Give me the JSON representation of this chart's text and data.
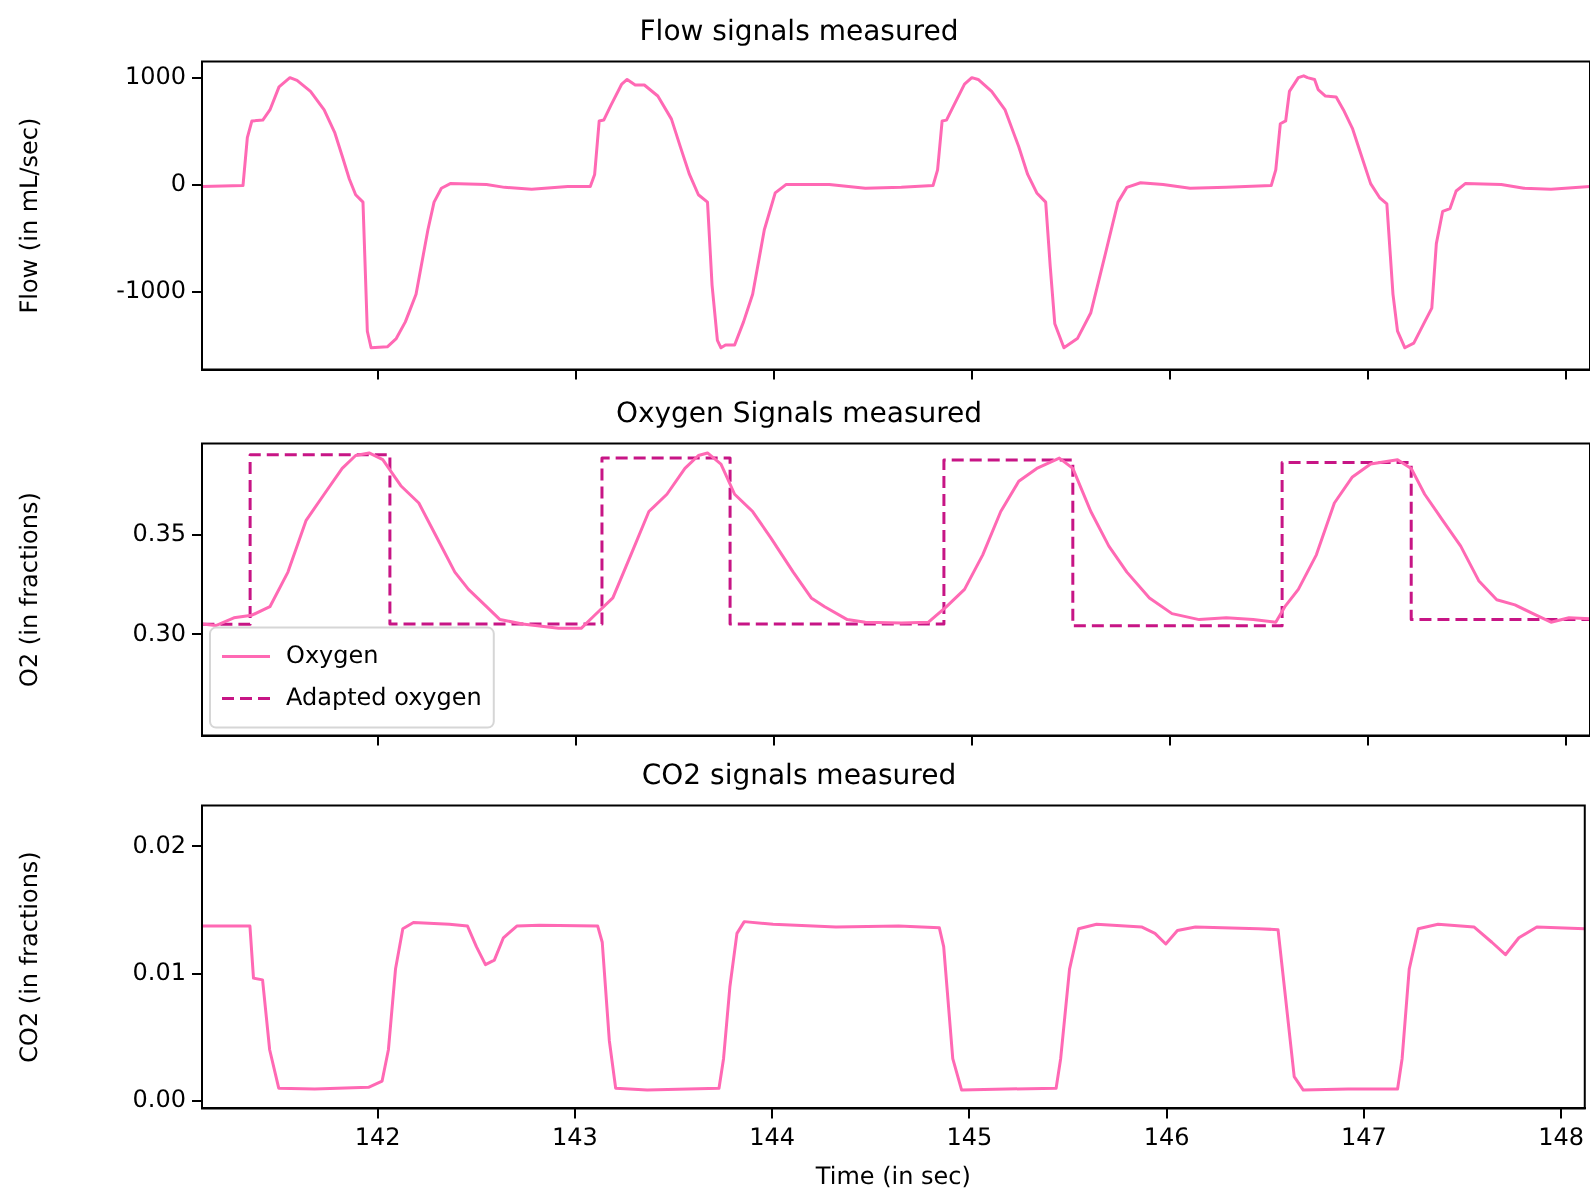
{
  "chart_data": [
    {
      "type": "line",
      "title": "Flow signals measured",
      "ylabel": "Flow (in mL/sec)",
      "xlim": [
        141.11,
        148.12
      ],
      "xticks": [
        142,
        143,
        144,
        145,
        146,
        147,
        148
      ],
      "ylim": [
        -1730,
        1150
      ],
      "yticks": [
        -1000,
        0,
        1000
      ],
      "tick_labels": "y",
      "marker": "none",
      "series": [
        {
          "color": "#ff69b4",
          "x": [
            141.112,
            141.317,
            141.339,
            141.362,
            141.417,
            141.453,
            141.499,
            141.554,
            141.59,
            141.658,
            141.727,
            141.781,
            141.818,
            141.854,
            141.886,
            141.923,
            141.945,
            141.964,
            142.046,
            142.091,
            142.137,
            142.191,
            142.251,
            142.282,
            142.319,
            142.364,
            142.547,
            142.638,
            142.775,
            142.957,
            143.071,
            143.093,
            143.116,
            143.139,
            143.175,
            143.23,
            143.257,
            143.298,
            143.344,
            143.412,
            143.481,
            143.526,
            143.572,
            143.617,
            143.663,
            143.686,
            143.713,
            143.731,
            143.754,
            143.8,
            143.845,
            143.891,
            143.95,
            144.005,
            144.059,
            144.278,
            144.46,
            144.642,
            144.802,
            144.825,
            144.848,
            144.87,
            144.907,
            144.961,
            144.998,
            145.03,
            145.098,
            145.166,
            145.235,
            145.28,
            145.326,
            145.371,
            145.394,
            145.417,
            145.463,
            145.531,
            145.599,
            145.668,
            145.736,
            145.781,
            145.85,
            145.964,
            146.1,
            146.283,
            146.51,
            146.533,
            146.556,
            146.583,
            146.602,
            146.647,
            146.674,
            146.693,
            146.729,
            146.747,
            146.784,
            146.838,
            146.875,
            146.92,
            146.966,
            147.012,
            147.057,
            147.094,
            147.125,
            147.148,
            147.185,
            147.23,
            147.285,
            147.321,
            147.344,
            147.376,
            147.413,
            147.444,
            147.49,
            147.672,
            147.786,
            147.923,
            148.12
          ],
          "values": [
            -17,
            -9,
            440,
            595,
            603,
            698,
            914,
            1000,
            974,
            871,
            698,
            483,
            267,
            52,
            -95,
            -164,
            -1371,
            -1526,
            -1517,
            -1440,
            -1284,
            -1026,
            -422,
            -164,
            -34,
            9,
            0,
            -26,
            -43,
            -17,
            -17,
            95,
            595,
            603,
            741,
            940,
            983,
            931,
            931,
            828,
            612,
            353,
            95,
            -95,
            -164,
            -940,
            -1457,
            -1526,
            -1500,
            -1500,
            -1284,
            -1026,
            -422,
            -78,
            0,
            0,
            -34,
            -26,
            -9,
            138,
            595,
            603,
            741,
            940,
            1000,
            983,
            871,
            698,
            353,
            95,
            -78,
            -164,
            -767,
            -1302,
            -1526,
            -1440,
            -1198,
            -681,
            -164,
            -26,
            17,
            0,
            -34,
            -26,
            -9,
            138,
            569,
            595,
            871,
            1000,
            1017,
            1000,
            983,
            888,
            828,
            819,
            698,
            526,
            267,
            9,
            -121,
            -181,
            -1026,
            -1371,
            -1526,
            -1483,
            -1284,
            -1155,
            -552,
            -250,
            -224,
            -60,
            9,
            0,
            -34,
            -43,
            -17
          ]
        }
      ]
    },
    {
      "type": "line",
      "title": "Oxygen Signals measured",
      "ylabel": "O2 (in fractions)",
      "xlim": [
        141.11,
        148.12
      ],
      "xticks": [
        142,
        143,
        144,
        145,
        146,
        147,
        148
      ],
      "ylim": [
        0.249,
        0.396
      ],
      "yticks": [
        {
          "value": 0.3,
          "label": "0.30"
        },
        {
          "value": 0.35,
          "label": "0.35"
        }
      ],
      "tick_labels": "y",
      "marker": "none",
      "legend": "bottom left",
      "series": [
        {
          "name": "Oxygen",
          "color": "#ff69b4",
          "line_style": "solid",
          "x": [
            141.112,
            141.18,
            141.271,
            141.362,
            141.453,
            141.544,
            141.636,
            141.727,
            141.818,
            141.886,
            141.954,
            142.023,
            142.114,
            142.205,
            142.296,
            142.387,
            142.456,
            142.547,
            142.615,
            142.729,
            142.911,
            143.025,
            143.093,
            143.185,
            143.276,
            143.367,
            143.458,
            143.549,
            143.617,
            143.663,
            143.731,
            143.8,
            143.891,
            143.982,
            144.096,
            144.187,
            144.255,
            144.369,
            144.46,
            144.642,
            144.779,
            144.87,
            144.961,
            145.053,
            145.144,
            145.235,
            145.326,
            145.44,
            145.508,
            145.599,
            145.69,
            145.781,
            145.895,
            146.009,
            146.146,
            146.283,
            146.419,
            146.533,
            146.579,
            146.647,
            146.738,
            146.829,
            146.92,
            147.012,
            147.148,
            147.217,
            147.285,
            147.376,
            147.467,
            147.558,
            147.649,
            147.741,
            147.832,
            147.923,
            148.014,
            148.12
          ],
          "values": [
            0.3052,
            0.3044,
            0.3083,
            0.3096,
            0.3139,
            0.3313,
            0.3574,
            0.3705,
            0.3835,
            0.39,
            0.3913,
            0.3879,
            0.3748,
            0.3661,
            0.3487,
            0.3313,
            0.3226,
            0.3139,
            0.3074,
            0.3052,
            0.303,
            0.303,
            0.3096,
            0.3183,
            0.34,
            0.3618,
            0.3705,
            0.3835,
            0.39,
            0.3913,
            0.3857,
            0.3705,
            0.3618,
            0.3487,
            0.3313,
            0.3183,
            0.3139,
            0.3074,
            0.3061,
            0.3057,
            0.3061,
            0.3139,
            0.3226,
            0.34,
            0.3618,
            0.377,
            0.3835,
            0.3887,
            0.3835,
            0.3618,
            0.3444,
            0.3313,
            0.3183,
            0.3104,
            0.3074,
            0.3083,
            0.3074,
            0.3061,
            0.3139,
            0.3226,
            0.34,
            0.3661,
            0.3792,
            0.3857,
            0.3879,
            0.3835,
            0.3705,
            0.3574,
            0.3444,
            0.327,
            0.3174,
            0.3148,
            0.3104,
            0.3061,
            0.3083,
            0.3078
          ]
        },
        {
          "name": "Adapted oxygen",
          "color": "#c71585",
          "line_style": "dashed",
          "x": [
            141.112,
            141.353,
            141.353,
            142.059,
            142.059,
            143.13,
            143.13,
            143.777,
            143.777,
            144.857,
            144.857,
            145.508,
            145.508,
            146.565,
            146.565,
            147.217,
            147.217,
            148.12
          ],
          "values": [
            0.305,
            0.305,
            0.3904,
            0.3904,
            0.3052,
            0.3052,
            0.3887,
            0.3887,
            0.3052,
            0.3052,
            0.3878,
            0.3878,
            0.3043,
            0.3043,
            0.3865,
            0.3865,
            0.3074,
            0.3074
          ]
        }
      ]
    },
    {
      "type": "line",
      "title": "CO2 signals measured",
      "ylabel": "CO2 (in fractions)",
      "xlabel": "Time (in sec)",
      "xlim": [
        141.11,
        148.12
      ],
      "xticks": [
        142,
        143,
        144,
        145,
        146,
        147,
        148
      ],
      "ylim": [
        -0.0006,
        0.0232
      ],
      "yticks": [
        {
          "value": 0,
          "label": "0.00"
        },
        {
          "value": 0.01,
          "label": "0.01"
        },
        {
          "value": 0.02,
          "label": "0.02"
        }
      ],
      "marker": "none",
      "series": [
        {
          "color": "#ff69b4",
          "x": [
            141.112,
            141.353,
            141.371,
            141.417,
            141.453,
            141.499,
            141.681,
            141.954,
            142.023,
            142.055,
            142.091,
            142.128,
            142.182,
            142.364,
            142.456,
            142.501,
            142.547,
            142.592,
            142.638,
            142.706,
            142.82,
            143.116,
            143.139,
            143.175,
            143.207,
            143.367,
            143.731,
            143.754,
            143.786,
            143.822,
            143.859,
            144.005,
            144.324,
            144.642,
            144.848,
            144.87,
            144.916,
            144.961,
            145.189,
            145.44,
            145.463,
            145.508,
            145.554,
            145.645,
            145.873,
            145.941,
            145.996,
            146.055,
            146.146,
            146.465,
            146.565,
            146.602,
            146.647,
            146.693,
            146.92,
            147.171,
            147.194,
            147.23,
            147.276,
            147.376,
            147.558,
            147.649,
            147.718,
            147.786,
            147.877,
            148.12
          ],
          "values": [
            0.01373,
            0.01373,
            0.00964,
            0.0095,
            0.00401,
            0.00099,
            0.00092,
            0.00106,
            0.00155,
            0.00401,
            0.01035,
            0.01352,
            0.01401,
            0.01387,
            0.01373,
            0.01211,
            0.0107,
            0.01105,
            0.01281,
            0.01373,
            0.0138,
            0.01373,
            0.01246,
            0.00472,
            0.00099,
            0.00084,
            0.00099,
            0.00331,
            0.00894,
            0.01316,
            0.01408,
            0.01387,
            0.01366,
            0.01373,
            0.01359,
            0.01211,
            0.00331,
            0.00084,
            0.00092,
            0.00099,
            0.00331,
            0.01035,
            0.01352,
            0.01387,
            0.01366,
            0.01316,
            0.01232,
            0.01338,
            0.01366,
            0.01352,
            0.01345,
            0.00824,
            0.0019,
            0.00084,
            0.00092,
            0.00092,
            0.00331,
            0.01035,
            0.01352,
            0.01387,
            0.01366,
            0.01246,
            0.01148,
            0.01281,
            0.01366,
            0.01352
          ]
        }
      ]
    }
  ]
}
